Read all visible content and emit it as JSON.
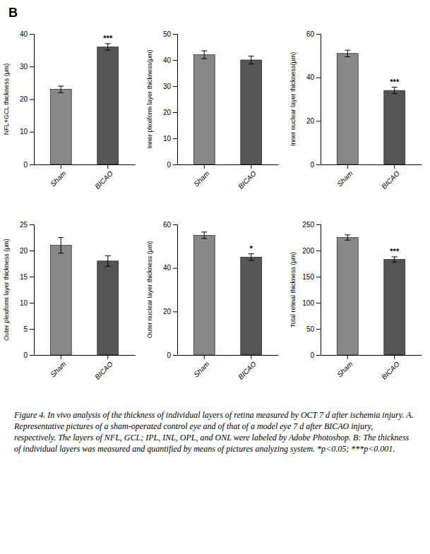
{
  "panel_label": "B",
  "caption": "Figure 4. In vivo analysis of the thickness of individual layers of retina measured by OCT 7 d after ischemia injury. A. Representative pictures of a sham-operated control eye and of that of a model eye 7 d after BICAO injury, respectively. The layers of NFL, GCL; IPL, INL, OPL, and ONL were labeled by Adobe Photoshop. B: The thickness of individual layers was measured and quantified by means of pictures analyzing system. *p<0.05; ***p<0.001.",
  "chart_data": [
    {
      "type": "bar",
      "y_label": "NFL+GCL thickness (μm)",
      "categories": [
        "Sham",
        "BICAO"
      ],
      "values": [
        23,
        36
      ],
      "errors": [
        1.0,
        1.0
      ],
      "colors": [
        "#888888",
        "#555555"
      ],
      "ylim": [
        0,
        40
      ],
      "yticks": [
        0,
        10,
        20,
        30,
        40
      ],
      "annotations": [
        {
          "text": "***",
          "x": "BICAO"
        }
      ],
      "grid": false
    },
    {
      "type": "bar",
      "y_label": "Inner plexiform layer thickness(μm)",
      "categories": [
        "Sham",
        "BICAO"
      ],
      "values": [
        42,
        40
      ],
      "errors": [
        1.5,
        1.5
      ],
      "colors": [
        "#888888",
        "#555555"
      ],
      "ylim": [
        0,
        50
      ],
      "yticks": [
        0,
        10,
        20,
        30,
        40,
        50
      ],
      "grid": false
    },
    {
      "type": "bar",
      "y_label": "Inner nuclear layer thickness(μm)",
      "categories": [
        "Sham",
        "BICAO"
      ],
      "values": [
        51,
        34
      ],
      "errors": [
        1.5,
        1.5
      ],
      "colors": [
        "#888888",
        "#555555"
      ],
      "ylim": [
        0,
        60
      ],
      "yticks": [
        0,
        20,
        40,
        60
      ],
      "annotations": [
        {
          "text": "***",
          "x": "BICAO"
        }
      ],
      "grid": false
    },
    {
      "type": "bar",
      "y_label": "Outer plexiform layer thickness (μm)",
      "categories": [
        "Sham",
        "BICAO"
      ],
      "values": [
        21,
        18
      ],
      "errors": [
        1.5,
        1.0
      ],
      "colors": [
        "#888888",
        "#555555"
      ],
      "ylim": [
        0,
        25
      ],
      "yticks": [
        0,
        5,
        10,
        15,
        20,
        25
      ],
      "grid": false
    },
    {
      "type": "bar",
      "y_label": "Outer nuclear layer thickness (μm)",
      "categories": [
        "Sham",
        "BICAO"
      ],
      "values": [
        55,
        45
      ],
      "errors": [
        1.5,
        1.5
      ],
      "colors": [
        "#888888",
        "#555555"
      ],
      "ylim": [
        0,
        60
      ],
      "yticks": [
        0,
        20,
        40,
        60
      ],
      "annotations": [
        {
          "text": "*",
          "x": "BICAO"
        }
      ],
      "grid": false
    },
    {
      "type": "bar",
      "y_label": "Total retinal thickness (μm)",
      "categories": [
        "Sham",
        "BICAO"
      ],
      "values": [
        225,
        183
      ],
      "errors": [
        5.0,
        5.0
      ],
      "colors": [
        "#888888",
        "#555555"
      ],
      "ylim": [
        0,
        250
      ],
      "yticks": [
        0,
        50,
        100,
        150,
        200,
        250
      ],
      "annotations": [
        {
          "text": "***",
          "x": "BICAO"
        }
      ],
      "grid": false
    }
  ]
}
